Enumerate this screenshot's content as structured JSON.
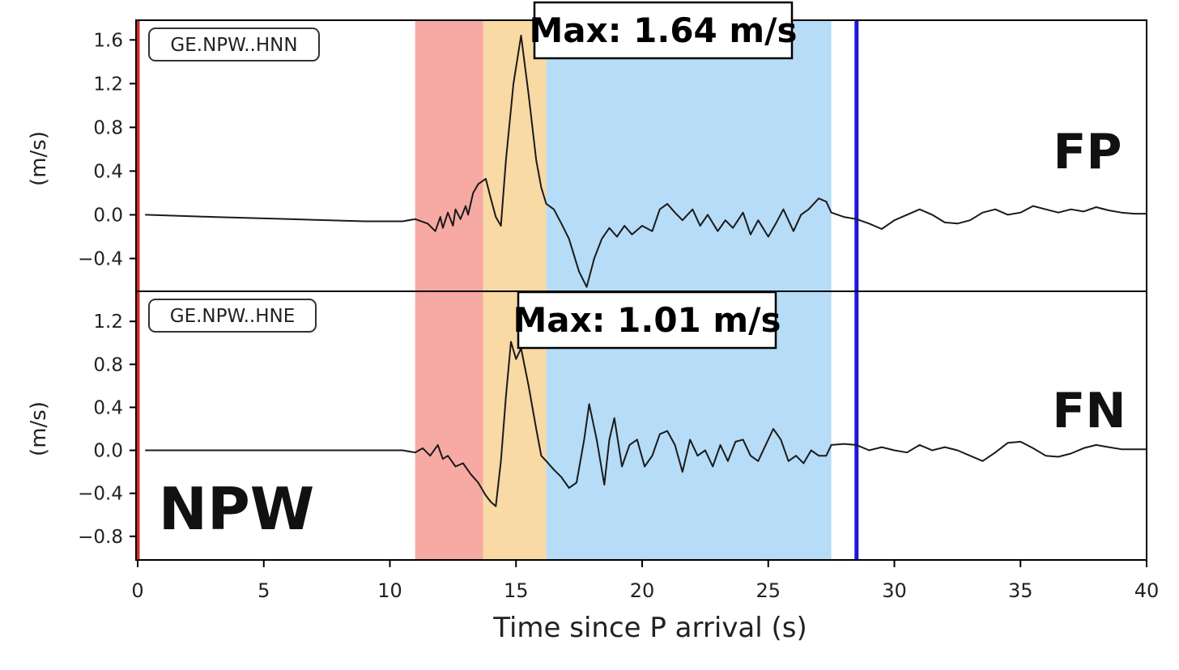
{
  "chart_data": {
    "type": "line",
    "xlabel": "Time since P arrival (s)",
    "xlim": [
      0,
      40
    ],
    "x_ticks": [
      0,
      5,
      10,
      15,
      20,
      25,
      30,
      35,
      40
    ],
    "station_label": "NPW",
    "vertical_lines": [
      {
        "x": 0.0,
        "color": "#d42a20"
      },
      {
        "x": 28.5,
        "color": "#1f17d6"
      }
    ],
    "shaded_regions": [
      {
        "x0": 11.0,
        "x1": 13.7,
        "color": "#f6aaa3"
      },
      {
        "x0": 13.7,
        "x1": 16.2,
        "color": "#f9d9a4"
      },
      {
        "x0": 16.2,
        "x1": 27.5,
        "color": "#b6dcf7"
      }
    ],
    "panels": [
      {
        "channel": "GE.NPW..HNN",
        "component": "FP",
        "max_label": "Max: 1.64 m/s",
        "ylabel": "(m/s)",
        "ylim": [
          -0.7,
          1.78
        ],
        "y_ticks": [
          1.6,
          1.2,
          0.8,
          0.4,
          0.0,
          -0.4
        ],
        "y_tick_labels": [
          "1.6",
          "1.2",
          "0.8",
          "0.4",
          "0.0",
          "−0.4"
        ],
        "series": [
          {
            "x": [
              0.3,
              3,
              6,
              9,
              10.5,
              11.0,
              11.5,
              11.8,
              12.0,
              12.1,
              12.3,
              12.5,
              12.6,
              12.8,
              13.0,
              13.1,
              13.3,
              13.5,
              13.8,
              14.0,
              14.2,
              14.4,
              14.6,
              14.9,
              15.2,
              15.5,
              15.8,
              16.0,
              16.2,
              16.5,
              16.8,
              17.1,
              17.5,
              17.8,
              18.1,
              18.4,
              18.7,
              19.0,
              19.3,
              19.6,
              20.0,
              20.4,
              20.7,
              21.0,
              21.3,
              21.6,
              22.0,
              22.3,
              22.6,
              23.0,
              23.3,
              23.6,
              24.0,
              24.3,
              24.6,
              25.0,
              25.3,
              25.6,
              26.0,
              26.3,
              26.6,
              27.0,
              27.3,
              27.5,
              28.0,
              28.5,
              29.0,
              29.5,
              30.0,
              30.5,
              31.0,
              31.5,
              32.0,
              32.5,
              33.0,
              33.5,
              34.0,
              34.5,
              35.0,
              35.5,
              36.0,
              36.5,
              37.0,
              37.5,
              38.0,
              38.5,
              39.0,
              39.5,
              40.0
            ],
            "y": [
              0.0,
              -0.02,
              -0.04,
              -0.06,
              -0.06,
              -0.04,
              -0.08,
              -0.15,
              -0.02,
              -0.12,
              0.02,
              -0.1,
              0.05,
              -0.04,
              0.08,
              0.0,
              0.2,
              0.28,
              0.33,
              0.15,
              -0.02,
              -0.1,
              0.5,
              1.2,
              1.64,
              1.1,
              0.5,
              0.25,
              0.1,
              0.05,
              -0.08,
              -0.22,
              -0.52,
              -0.66,
              -0.4,
              -0.22,
              -0.12,
              -0.2,
              -0.1,
              -0.18,
              -0.1,
              -0.15,
              0.05,
              0.1,
              0.02,
              -0.05,
              0.05,
              -0.1,
              0.0,
              -0.15,
              -0.05,
              -0.12,
              0.02,
              -0.18,
              -0.05,
              -0.2,
              -0.08,
              0.05,
              -0.15,
              0.0,
              0.05,
              0.15,
              0.12,
              0.02,
              -0.02,
              -0.04,
              -0.08,
              -0.13,
              -0.05,
              0.0,
              0.05,
              0.0,
              -0.07,
              -0.08,
              -0.05,
              0.02,
              0.05,
              0.0,
              0.02,
              0.08,
              0.05,
              0.02,
              0.05,
              0.03,
              0.07,
              0.04,
              0.02,
              0.01,
              0.01
            ]
          }
        ]
      },
      {
        "channel": "GE.NPW..HNE",
        "component": "FN",
        "max_label": "Max: 1.01 m/s",
        "ylabel": "(m/s)",
        "ylim": [
          -1.02,
          1.48
        ],
        "y_ticks": [
          1.2,
          0.8,
          0.4,
          0.0,
          -0.4,
          -0.8
        ],
        "y_tick_labels": [
          "1.2",
          "0.8",
          "0.4",
          "0.0",
          "−0.4",
          "−0.8"
        ],
        "series": [
          {
            "x": [
              0.3,
              3,
              6,
              9,
              10.5,
              11.0,
              11.3,
              11.6,
              11.9,
              12.1,
              12.3,
              12.6,
              12.9,
              13.2,
              13.5,
              13.8,
              14.0,
              14.2,
              14.4,
              14.6,
              14.8,
              15.0,
              15.2,
              15.5,
              15.8,
              16.0,
              16.2,
              16.5,
              16.8,
              17.1,
              17.4,
              17.7,
              17.9,
              18.2,
              18.5,
              18.7,
              18.9,
              19.2,
              19.5,
              19.8,
              20.1,
              20.4,
              20.7,
              21.0,
              21.3,
              21.6,
              21.9,
              22.2,
              22.5,
              22.8,
              23.1,
              23.4,
              23.7,
              24.0,
              24.3,
              24.6,
              24.9,
              25.2,
              25.5,
              25.8,
              26.1,
              26.4,
              26.7,
              27.0,
              27.3,
              27.5,
              28.0,
              28.5,
              29.0,
              29.5,
              30.0,
              30.5,
              31.0,
              31.5,
              32.0,
              32.5,
              33.0,
              33.5,
              34.0,
              34.5,
              35.0,
              35.5,
              36.0,
              36.5,
              37.0,
              37.5,
              38.0,
              38.5,
              39.0,
              39.5,
              40.0
            ],
            "y": [
              0.0,
              0.0,
              0.0,
              0.0,
              0.0,
              -0.02,
              0.02,
              -0.05,
              0.05,
              -0.08,
              -0.05,
              -0.15,
              -0.12,
              -0.22,
              -0.3,
              -0.42,
              -0.48,
              -0.52,
              -0.1,
              0.5,
              1.01,
              0.85,
              0.95,
              0.6,
              0.2,
              -0.05,
              -0.1,
              -0.18,
              -0.25,
              -0.35,
              -0.3,
              0.1,
              0.43,
              0.1,
              -0.32,
              0.1,
              0.3,
              -0.15,
              0.05,
              0.1,
              -0.15,
              -0.05,
              0.15,
              0.18,
              0.05,
              -0.2,
              0.1,
              -0.05,
              0.0,
              -0.15,
              0.05,
              -0.1,
              0.08,
              0.1,
              -0.05,
              -0.1,
              0.05,
              0.2,
              0.1,
              -0.1,
              -0.05,
              -0.12,
              0.0,
              -0.05,
              -0.05,
              0.05,
              0.06,
              0.05,
              0.0,
              0.03,
              0.0,
              -0.02,
              0.05,
              0.0,
              0.03,
              0.0,
              -0.05,
              -0.1,
              -0.02,
              0.07,
              0.08,
              0.02,
              -0.05,
              -0.06,
              -0.03,
              0.02,
              0.05,
              0.03,
              0.01,
              0.01,
              0.01
            ]
          }
        ]
      }
    ]
  }
}
